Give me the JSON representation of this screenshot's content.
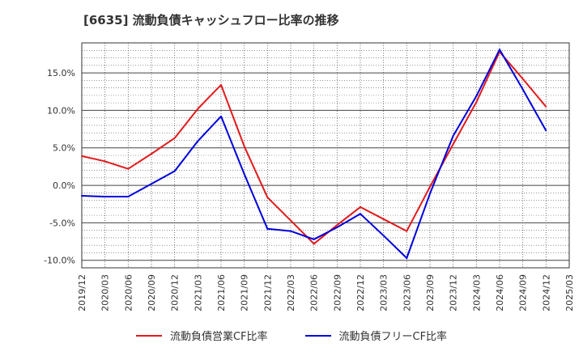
{
  "chart_data": {
    "type": "line",
    "title": "[6635]  流動負債キャッシュフロー比率の推移",
    "x": [
      "2019/12",
      "2020/03",
      "2020/06",
      "2020/09",
      "2020/12",
      "2021/03",
      "2021/06",
      "2021/09",
      "2021/12",
      "2022/03",
      "2022/06",
      "2022/09",
      "2022/12",
      "2023/03",
      "2023/06",
      "2023/09",
      "2023/12",
      "2024/03",
      "2024/06",
      "2024/09",
      "2024/12",
      "2025/03"
    ],
    "yticks": [
      -10,
      -5,
      0,
      5,
      10,
      15
    ],
    "ytick_labels": [
      "-10.0%",
      "-5.0%",
      "0.0%",
      "5.0%",
      "10.0%",
      "15.0%"
    ],
    "ylim": [
      -11,
      19
    ],
    "grid": true,
    "legend_position": "bottom",
    "series": [
      {
        "name": "流動負債営業CF比率",
        "color": "#e31a1c",
        "values": [
          3.9,
          3.2,
          2.2,
          4.2,
          6.3,
          10.2,
          13.4,
          5.2,
          -1.6,
          -4.7,
          -7.8,
          -5.3,
          -2.9,
          -4.5,
          -6.1,
          -0.2,
          5.5,
          11.1,
          17.8,
          14.2,
          10.5,
          null
        ]
      },
      {
        "name": "流動負債フリーCF比率",
        "color": "#0000dd",
        "values": [
          -1.4,
          -1.5,
          -1.5,
          0.2,
          1.9,
          5.9,
          9.2,
          1.5,
          -5.8,
          -6.1,
          -7.2,
          -5.6,
          -3.8,
          -6.7,
          -9.7,
          -1.1,
          6.6,
          11.9,
          18.1,
          12.8,
          7.3,
          null
        ]
      }
    ]
  }
}
